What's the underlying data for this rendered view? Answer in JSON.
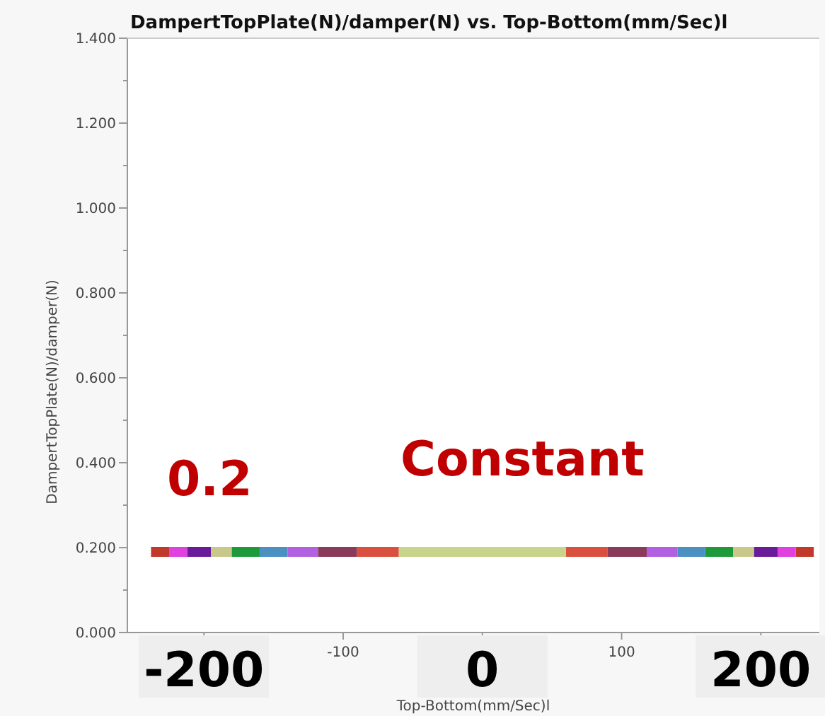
{
  "chart_data": {
    "type": "line",
    "title": "DampertTopPlate(N)/damper(N) vs. Top-Bottom(mm/Sec)l",
    "xlabel": "Top-Bottom(mm/Sec)l",
    "ylabel": "DampertTopPlate(N)/damper(N)",
    "annotations": [
      "0.2",
      "Constant",
      "-200",
      "0",
      "200"
    ],
    "xlim": [
      -255,
      242
    ],
    "ylim": [
      0,
      1.4
    ],
    "xticks": [
      {
        "value": -200,
        "label": null
      },
      -100,
      {
        "value": 0,
        "label": null
      },
      100,
      {
        "value": 200,
        "label": null
      }
    ],
    "yticks": [
      {
        "value": 0,
        "label": "0.000"
      },
      {
        "value": 0.1,
        "label": null
      },
      {
        "value": 0.2,
        "label": "0.200"
      },
      {
        "value": 0.3,
        "label": null
      },
      {
        "value": 0.4,
        "label": "0.400"
      },
      {
        "value": 0.5,
        "label": null
      },
      {
        "value": 0.6,
        "label": "0.600"
      },
      {
        "value": 0.7,
        "label": null
      },
      {
        "value": 0.8,
        "label": "0.800"
      },
      {
        "value": 0.9,
        "label": null
      },
      {
        "value": 1,
        "label": "1.000"
      },
      {
        "value": 1.1,
        "label": null
      },
      {
        "value": 1.2,
        "label": "1.200"
      },
      {
        "value": 1.3,
        "label": null
      },
      {
        "value": 1.4,
        "label": "1.400"
      }
    ],
    "grid": false,
    "legend": false,
    "marker": "none",
    "line_style": "solid",
    "series": [
      {
        "color": "#c0392b",
        "x": [
          -238,
          -225,
          0,
          225,
          238
        ],
        "values": [
          0.19,
          0.19,
          null,
          0.19,
          0.19
        ]
      },
      {
        "color": "#e040e0",
        "x": [
          -225,
          -212,
          0,
          212,
          225
        ],
        "values": [
          0.19,
          0.19,
          null,
          0.19,
          0.19
        ]
      },
      {
        "color": "#6a1b9a",
        "x": [
          -212,
          -195,
          0,
          195,
          212
        ],
        "values": [
          0.19,
          0.19,
          null,
          0.19,
          0.19
        ]
      },
      {
        "color": "#c8c88a",
        "x": [
          -195,
          -180,
          0,
          180,
          195
        ],
        "values": [
          0.19,
          0.19,
          null,
          0.19,
          0.19
        ]
      },
      {
        "color": "#1e9a3a",
        "x": [
          -180,
          -160,
          0,
          160,
          180
        ],
        "values": [
          0.19,
          0.19,
          null,
          0.19,
          0.19
        ]
      },
      {
        "color": "#4a90c0",
        "x": [
          -160,
          -140,
          0,
          140,
          160
        ],
        "values": [
          0.19,
          0.19,
          null,
          0.19,
          0.19
        ]
      },
      {
        "color": "#b060e0",
        "x": [
          -140,
          -118,
          0,
          118,
          140
        ],
        "values": [
          0.19,
          0.19,
          null,
          0.19,
          0.19
        ]
      },
      {
        "color": "#8b3a5a",
        "x": [
          -118,
          -90,
          0,
          90,
          118
        ],
        "values": [
          0.19,
          0.19,
          null,
          0.19,
          0.19
        ]
      },
      {
        "color": "#d9503f",
        "x": [
          -90,
          -60,
          0,
          60,
          90
        ],
        "values": [
          0.19,
          0.19,
          null,
          0.19,
          0.19
        ]
      },
      {
        "color": "#c8d48a",
        "x": [
          -60,
          60
        ],
        "values": [
          0.19,
          0.19
        ]
      }
    ]
  }
}
